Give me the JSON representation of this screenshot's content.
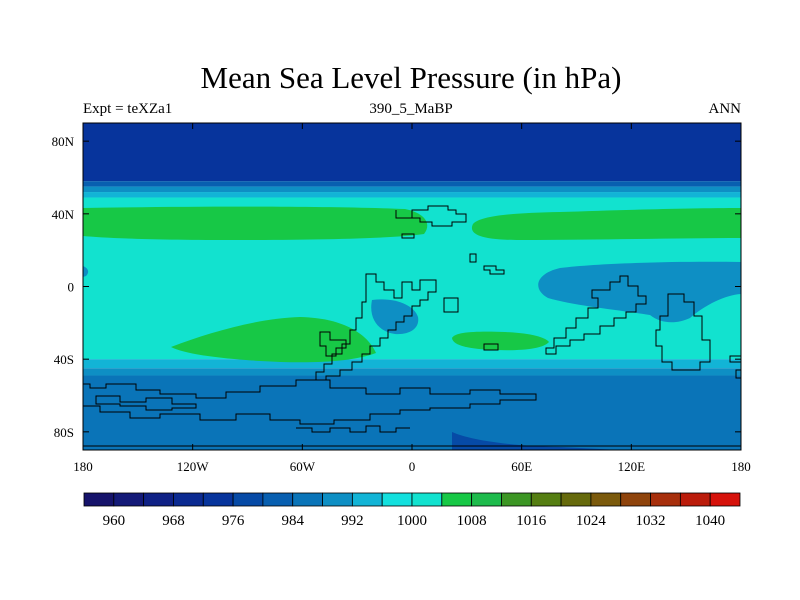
{
  "chart_data": {
    "type": "heatmap",
    "title": "Mean Sea Level Pressure (in hPa)",
    "left_label": "Expt = teXZa1",
    "center_label": "390_5_MaBP",
    "right_label": "ANN",
    "xlabel": "",
    "ylabel": "",
    "xlim": [
      -180,
      180
    ],
    "ylim": [
      -90,
      90
    ],
    "x_ticks": [
      {
        "value": -180,
        "label": "180"
      },
      {
        "value": -120,
        "label": "120W"
      },
      {
        "value": -60,
        "label": "60W"
      },
      {
        "value": 0,
        "label": "0"
      },
      {
        "value": 60,
        "label": "60E"
      },
      {
        "value": 120,
        "label": "120E"
      },
      {
        "value": 180,
        "label": "180"
      }
    ],
    "y_ticks": [
      {
        "value": 80,
        "label": "80N"
      },
      {
        "value": 40,
        "label": "40N"
      },
      {
        "value": 0,
        "label": "0"
      },
      {
        "value": -40,
        "label": "40S"
      },
      {
        "value": -80,
        "label": "80S"
      }
    ],
    "zonal_bands": [
      {
        "lat_top": 90,
        "lat_bottom": 58,
        "level": 972
      },
      {
        "lat_top": 58,
        "lat_bottom": 55,
        "level": 980
      },
      {
        "lat_top": 55,
        "lat_bottom": 52,
        "level": 988
      },
      {
        "lat_top": 52,
        "lat_bottom": 49,
        "level": 992
      },
      {
        "lat_top": 49,
        "lat_bottom": -40,
        "level": 1000
      },
      {
        "lat_top": -40,
        "lat_bottom": -45,
        "level": 992
      },
      {
        "lat_top": -45,
        "lat_bottom": -49,
        "level": 988
      },
      {
        "lat_top": -49,
        "lat_bottom": -90,
        "level": 984
      }
    ],
    "features": [
      {
        "level": 1008,
        "region": "northern subtropical high, west",
        "lon": [
          -180,
          10
        ],
        "lat": [
          24,
          40
        ]
      },
      {
        "level": 1008,
        "region": "northern subtropical high, east",
        "lon": [
          33,
          180
        ],
        "lat": [
          24,
          40
        ]
      },
      {
        "level": 992,
        "region": "equatorial low, east",
        "lon": [
          68,
          180
        ],
        "lat": [
          -15,
          12
        ]
      },
      {
        "level": 992,
        "region": "equatorial low, centre",
        "lon": [
          -28,
          5
        ],
        "lat": [
          -25,
          -8
        ]
      },
      {
        "level": 1008,
        "region": "southern subtropical high, west",
        "lon": [
          -128,
          -20
        ],
        "lat": [
          -42,
          -17
        ]
      },
      {
        "level": 1008,
        "region": "southern subtropical high, east",
        "lon": [
          22,
          75
        ],
        "lat": [
          -34,
          -25
        ]
      },
      {
        "level": 976,
        "region": "southern ocean low",
        "lon": [
          22,
          120
        ],
        "lat": [
          -90,
          -80
        ]
      }
    ],
    "colorbar": {
      "labels": [
        "960",
        "968",
        "976",
        "984",
        "992",
        "1000",
        "1008",
        "1016",
        "1024",
        "1032",
        "1040"
      ],
      "levels": [
        960,
        964,
        968,
        972,
        976,
        980,
        984,
        988,
        992,
        996,
        1000,
        1004,
        1008,
        1012,
        1016,
        1020,
        1024,
        1028,
        1032,
        1036,
        1040
      ],
      "colors": [
        "#16136b",
        "#141a78",
        "#0f2185",
        "#0b2a91",
        "#07349c",
        "#064aa6",
        "#085fb0",
        "#0a74b8",
        "#0e8fc4",
        "#12b4d6",
        "#13e0de",
        "#12e2cf",
        "#17c846",
        "#1ebb4c",
        "#3c9624",
        "#557e12",
        "#666a0c",
        "#7b5a0c",
        "#8f440c",
        "#a72f0c",
        "#bb1c0b",
        "#d6120b"
      ]
    }
  }
}
